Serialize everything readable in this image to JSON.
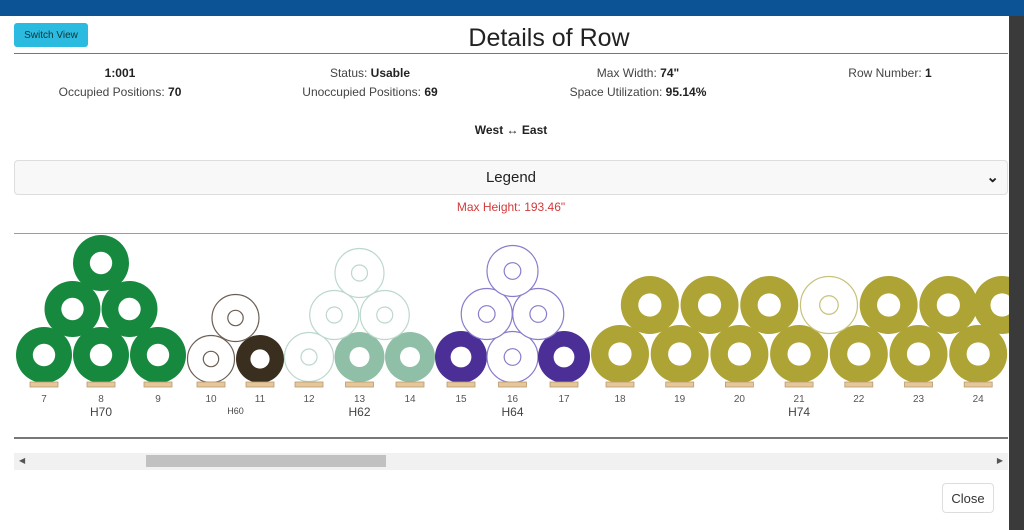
{
  "header": {
    "switch_view": "Switch View",
    "title": "Details of Row"
  },
  "info": {
    "row_id": "1:001",
    "status_label": "Status:",
    "status": "Usable",
    "max_width_label": "Max Width:",
    "max_width": "74\"",
    "row_number_label": "Row Number:",
    "row_number": "1",
    "occupied_label": "Occupied Positions:",
    "occupied": "70",
    "unoccupied_label": "Unoccupied Positions:",
    "unoccupied": "69",
    "util_label": "Space Utilization:",
    "util": "95.14%"
  },
  "direction": "West ↔ East",
  "legend": {
    "label": "Legend"
  },
  "max_height": "Max Height: 193.46\"",
  "groups": [
    {
      "label": "H70",
      "positions": [
        7,
        8,
        9
      ],
      "color": "#17893f",
      "rolls": [
        [
          7,
          0,
          1
        ],
        [
          8,
          0,
          1
        ],
        [
          9,
          0,
          1
        ],
        [
          7.5,
          1,
          1
        ],
        [
          8.5,
          1,
          1
        ],
        [
          8,
          2,
          1
        ]
      ]
    },
    {
      "label": "H60",
      "small": true,
      "positions": [
        10,
        11
      ],
      "color": "#3a2e1e",
      "empty_color": "#6b5e55",
      "rolls": [
        [
          10,
          0,
          0
        ],
        [
          11,
          0,
          1
        ],
        [
          10.5,
          1,
          0
        ]
      ]
    },
    {
      "label": "H62",
      "positions": [
        12,
        13,
        14
      ],
      "color": "#8fbfa6",
      "empty_color": "#bcd8cc",
      "rolls": [
        [
          12,
          0,
          0
        ],
        [
          13,
          0,
          1
        ],
        [
          14,
          0,
          1
        ],
        [
          12.5,
          1,
          0
        ],
        [
          13.5,
          1,
          0
        ],
        [
          13,
          2,
          0
        ]
      ]
    },
    {
      "label": "H64",
      "positions": [
        15,
        16,
        17
      ],
      "color": "#4b2f96",
      "empty_color": "#8a7ccc",
      "rolls": [
        [
          15,
          0,
          1
        ],
        [
          16,
          0,
          0
        ],
        [
          17,
          0,
          1
        ],
        [
          15.5,
          1,
          0
        ],
        [
          16.5,
          1,
          0
        ],
        [
          16,
          2,
          0
        ]
      ]
    },
    {
      "label": "H74",
      "positions": [
        18,
        19,
        20,
        21,
        22,
        23,
        24
      ],
      "color": "#aea335",
      "empty_color": "#c7c27a",
      "rolls": [
        [
          18,
          0,
          1
        ],
        [
          19,
          0,
          1
        ],
        [
          20,
          0,
          1
        ],
        [
          21,
          0,
          1
        ],
        [
          22,
          0,
          1
        ],
        [
          23,
          0,
          1
        ],
        [
          24,
          0,
          1
        ],
        [
          18.5,
          1,
          1
        ],
        [
          19.5,
          1,
          1
        ],
        [
          20.5,
          1,
          1
        ],
        [
          21.5,
          1,
          0
        ],
        [
          22.5,
          1,
          1
        ],
        [
          23.5,
          1,
          1
        ],
        [
          24.4,
          1,
          1
        ]
      ]
    }
  ],
  "footer": {
    "close": "Close"
  }
}
